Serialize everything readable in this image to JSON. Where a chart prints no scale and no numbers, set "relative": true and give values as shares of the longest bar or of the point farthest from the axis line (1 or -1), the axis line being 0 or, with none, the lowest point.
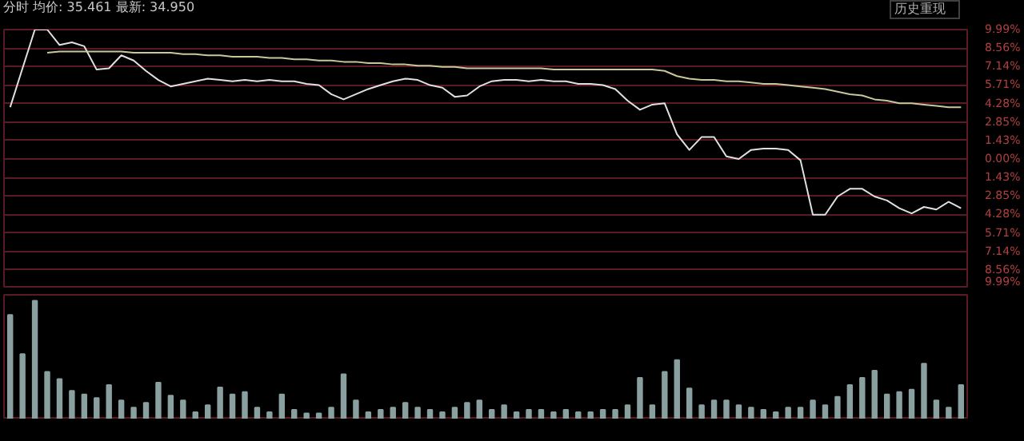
{
  "chart_data": [
    {
      "type": "line",
      "title": "分时 均价: 35.461 最新: 34.950",
      "annotations": [
        "历史重现"
      ],
      "categories": [
        null,
        null,
        null,
        null,
        null,
        null,
        null,
        null,
        null,
        null,
        null,
        null,
        null,
        null,
        null,
        null,
        null,
        null,
        null,
        null,
        null,
        null,
        null,
        null,
        null,
        null,
        null,
        null,
        null,
        null,
        null,
        null,
        null,
        null,
        null,
        null,
        null,
        null,
        null,
        null,
        null,
        null,
        null,
        null,
        null,
        null,
        null,
        null,
        null,
        null,
        null,
        null,
        null,
        null,
        null,
        null,
        null,
        null,
        null,
        null,
        null,
        null,
        null,
        null,
        null,
        null,
        null,
        null,
        null,
        null,
        null,
        null,
        null,
        null,
        null,
        null,
        null,
        null
      ],
      "series": [
        {
          "color": "#e0e0e0",
          "values": [
            4.0,
            7.0,
            9.99,
            9.99,
            8.8,
            9.0,
            8.7,
            6.9,
            7.0,
            8.0,
            7.6,
            6.8,
            6.1,
            5.6,
            5.8,
            6.0,
            6.2,
            6.1,
            6.0,
            6.1,
            6.0,
            6.1,
            6.0,
            6.0,
            5.8,
            5.7,
            5.0,
            4.6,
            5.0,
            5.4,
            5.7,
            6.0,
            6.2,
            6.1,
            5.7,
            5.5,
            4.8,
            4.9,
            5.6,
            6.0,
            6.1,
            6.1,
            6.0,
            6.1,
            6.0,
            6.0,
            5.8,
            5.8,
            5.7,
            5.4,
            4.5,
            3.8,
            4.2,
            4.3,
            1.9,
            0.7,
            1.7,
            1.7,
            0.2,
            0.0,
            0.7,
            0.8,
            0.8,
            0.7,
            -0.1,
            -4.3,
            -4.3,
            -2.9,
            -2.3,
            -2.3,
            -2.9,
            -3.2,
            -3.8,
            -4.2,
            -3.7,
            -3.9,
            -3.3,
            -3.8
          ]
        },
        {
          "color": "#c8c89a",
          "values": [
            null,
            null,
            null,
            8.2,
            8.3,
            8.3,
            8.3,
            8.3,
            8.3,
            8.3,
            8.2,
            8.2,
            8.2,
            8.2,
            8.1,
            8.1,
            8.0,
            8.0,
            7.9,
            7.9,
            7.9,
            7.8,
            7.8,
            7.7,
            7.7,
            7.6,
            7.6,
            7.5,
            7.5,
            7.4,
            7.4,
            7.3,
            7.3,
            7.2,
            7.2,
            7.1,
            7.1,
            7.0,
            7.0,
            7.0,
            7.0,
            7.0,
            7.0,
            7.0,
            6.9,
            6.9,
            6.9,
            6.9,
            6.9,
            6.9,
            6.9,
            6.9,
            6.9,
            6.8,
            6.4,
            6.2,
            6.1,
            6.1,
            6.0,
            6.0,
            5.9,
            5.8,
            5.8,
            5.7,
            5.6,
            5.5,
            5.4,
            5.2,
            5.0,
            4.9,
            4.6,
            4.5,
            4.3,
            4.3,
            4.2,
            4.1,
            4.0,
            4.0
          ]
        }
      ],
      "ylim": [
        -9.99,
        9.99
      ],
      "yticks": [
        {
          "value": 9.99,
          "label": "9.99%"
        },
        {
          "value": 8.56,
          "label": "8.56%"
        },
        {
          "value": 7.14,
          "label": "7.14%"
        },
        {
          "value": 5.71,
          "label": "5.71%"
        },
        {
          "value": 4.28,
          "label": "4.28%"
        },
        {
          "value": 2.85,
          "label": "2.85%"
        },
        {
          "value": 1.43,
          "label": "1.43%"
        },
        {
          "value": 0,
          "label": "0.00%"
        },
        {
          "value": -1.43,
          "label": "1.43%"
        },
        {
          "value": -2.85,
          "label": "2.85%"
        },
        {
          "value": -4.28,
          "label": "4.28%"
        },
        {
          "value": -5.71,
          "label": "5.71%"
        },
        {
          "value": -7.14,
          "label": "7.14%"
        },
        {
          "value": -8.56,
          "label": "8.56%"
        },
        {
          "value": -9.99,
          "label": "9.99%"
        }
      ],
      "grid": "y",
      "tick_labels": "y",
      "marker": "none",
      "line_style": "solid"
    },
    {
      "type": "bar",
      "relative": true,
      "color": "#8aa0a0",
      "tick_labels": false,
      "categories": [
        null,
        null,
        null,
        null,
        null,
        null,
        null,
        null,
        null,
        null,
        null,
        null,
        null,
        null,
        null,
        null,
        null,
        null,
        null,
        null,
        null,
        null,
        null,
        null,
        null,
        null,
        null,
        null,
        null,
        null,
        null,
        null,
        null,
        null,
        null,
        null,
        null,
        null,
        null,
        null,
        null,
        null,
        null,
        null,
        null,
        null,
        null,
        null,
        null,
        null,
        null,
        null,
        null,
        null,
        null,
        null,
        null,
        null,
        null,
        null,
        null,
        null,
        null,
        null,
        null,
        null,
        null,
        null,
        null,
        null,
        null,
        null,
        null,
        null,
        null,
        null,
        null,
        null
      ],
      "values": [
        0.88,
        0.55,
        1.0,
        0.4,
        0.34,
        0.24,
        0.21,
        0.18,
        0.29,
        0.16,
        0.1,
        0.14,
        0.31,
        0.2,
        0.16,
        0.06,
        0.12,
        0.27,
        0.21,
        0.23,
        0.1,
        0.06,
        0.21,
        0.08,
        0.05,
        0.05,
        0.1,
        0.38,
        0.16,
        0.06,
        0.08,
        0.1,
        0.14,
        0.1,
        0.08,
        0.06,
        0.1,
        0.14,
        0.16,
        0.08,
        0.12,
        0.06,
        0.08,
        0.08,
        0.06,
        0.08,
        0.06,
        0.06,
        0.08,
        0.08,
        0.12,
        0.35,
        0.12,
        0.4,
        0.5,
        0.26,
        0.12,
        0.16,
        0.16,
        0.12,
        0.1,
        0.08,
        0.06,
        0.1,
        0.1,
        0.16,
        0.12,
        0.19,
        0.29,
        0.35,
        0.41,
        0.21,
        0.23,
        0.25,
        0.47,
        0.16,
        0.1,
        0.29
      ]
    }
  ]
}
